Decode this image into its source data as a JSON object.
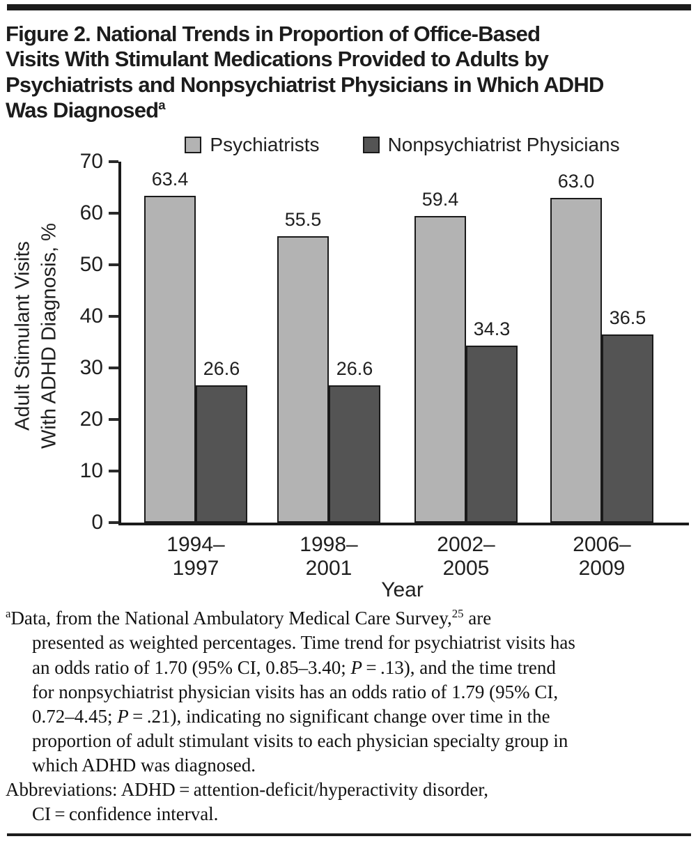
{
  "page": {
    "title": "Figure 2. National Trends in Proportion of Office-Based\nVisits With Stimulant Medications Provided to Adults by\nPsychiatrists and Nonpsychiatrist Physicians in Which ADHD\nWas Diagnosed",
    "title_marker": "a"
  },
  "chart_data": {
    "type": "bar",
    "title": "",
    "categories": [
      "1994–1997",
      "1998–2001",
      "2002–2005",
      "2006–2009"
    ],
    "series": [
      {
        "name": "Psychiatrists",
        "color": "#b3b3b3",
        "values": [
          63.4,
          55.5,
          59.4,
          63.0
        ],
        "labels": [
          "63.4",
          "55.5",
          "59.4",
          "63.0"
        ]
      },
      {
        "name": "Nonpsychiatrist Physicians",
        "color": "#545454",
        "values": [
          26.6,
          26.6,
          34.3,
          36.5
        ],
        "labels": [
          "26.6",
          "26.6",
          "34.3",
          "36.5"
        ]
      }
    ],
    "xlabel": "Year",
    "ylabel": "Adult Stimulant Visits\nWith ADHD Diagnosis, %",
    "ylim": [
      0,
      70
    ],
    "yticks": [
      0,
      10,
      20,
      30,
      40,
      50,
      60,
      70
    ],
    "grid": false,
    "legend_position": "top"
  },
  "footnote": {
    "marker": "a",
    "s1": "Data, from the National Ambulatory Medical Care Survey,",
    "ref": "25",
    "s2": " are\npresented as weighted percentages. Time trend for psychiatrist visits has\nan odds ratio of 1.70 (95% CI, 0.85–3.40; ",
    "p1": "P",
    "s3": " = .13), and the time trend\nfor nonpsychiatrist physician visits has an odds ratio of 1.79 (95% CI,\n0.72–4.45; ",
    "p2": "P",
    "s4": " = .21), indicating no significant change over time in the\nproportion of adult stimulant visits to each physician specialty group in\nwhich ADHD was diagnosed."
  },
  "abbreviations": "Abbreviations: ADHD = attention-deficit/hyperactivity disorder,\nCI = confidence interval."
}
